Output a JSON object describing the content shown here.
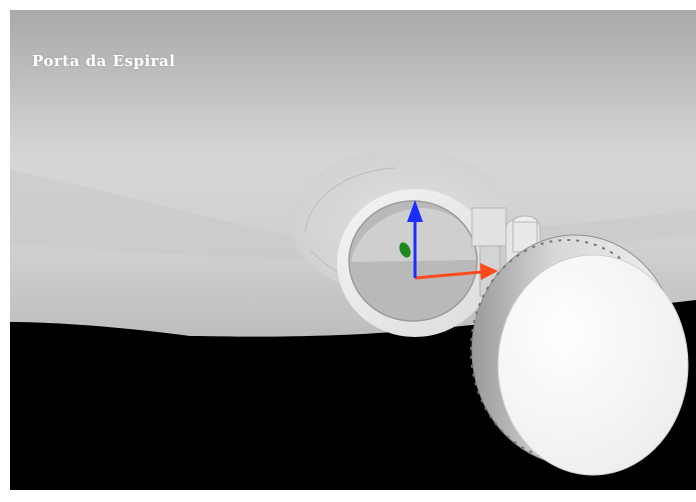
{
  "viewer": {
    "title": "Porta da Espiral",
    "background_color": "#000000"
  },
  "gizmo": {
    "x_axis_color": "#ff4a1c",
    "y_axis_color": "#1a2fff",
    "z_axis_color": "#1e8a1e"
  }
}
